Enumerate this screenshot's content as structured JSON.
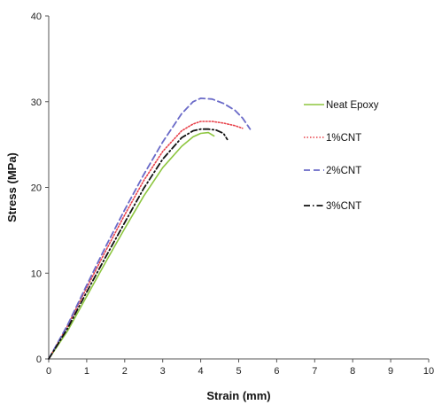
{
  "chart_data": {
    "type": "line",
    "title": "",
    "xlabel": "Strain (mm)",
    "ylabel": "Stress (MPa)",
    "xlim": [
      0,
      10
    ],
    "ylim": [
      0,
      40
    ],
    "xticks": [
      "0",
      "1",
      "2",
      "3",
      "4",
      "5",
      "6",
      "7",
      "8",
      "9",
      "10"
    ],
    "yticks": [
      "0",
      "10",
      "20",
      "30",
      "40"
    ],
    "grid": false,
    "legend_position": "right",
    "series": [
      {
        "name": "Neat Epoxy",
        "color": "#8dc63f",
        "dash": "solid",
        "x": [
          0,
          0.5,
          1.0,
          1.5,
          2.0,
          2.5,
          3.0,
          3.5,
          3.8,
          4.0,
          4.2,
          4.35
        ],
        "y": [
          0,
          3.3,
          7.3,
          11.3,
          15.2,
          19.0,
          22.3,
          24.8,
          25.9,
          26.3,
          26.4,
          26.0
        ]
      },
      {
        "name": "1%CNT",
        "color": "#e8414a",
        "dash": "dotted",
        "x": [
          0,
          0.5,
          1.0,
          1.5,
          2.0,
          2.5,
          3.0,
          3.5,
          3.8,
          4.0,
          4.3,
          4.6,
          4.9,
          5.1
        ],
        "y": [
          0,
          3.9,
          8.3,
          12.6,
          16.8,
          20.8,
          24.2,
          26.6,
          27.4,
          27.7,
          27.7,
          27.5,
          27.2,
          26.9
        ]
      },
      {
        "name": "2%CNT",
        "color": "#6a6ac8",
        "dash": "dashed",
        "x": [
          0,
          0.5,
          1.0,
          1.5,
          2.0,
          2.5,
          3.0,
          3.5,
          3.8,
          4.0,
          4.3,
          4.6,
          4.9,
          5.1,
          5.3
        ],
        "y": [
          0,
          4.0,
          8.6,
          13.1,
          17.4,
          21.5,
          25.3,
          28.6,
          30.0,
          30.4,
          30.3,
          29.8,
          29.0,
          28.1,
          26.8
        ]
      },
      {
        "name": "3%CNT",
        "color": "#111111",
        "dash": "dashdot",
        "x": [
          0,
          0.5,
          1.0,
          1.5,
          2.0,
          2.5,
          3.0,
          3.5,
          3.8,
          4.0,
          4.2,
          4.4,
          4.6,
          4.7
        ],
        "y": [
          0,
          3.6,
          7.8,
          11.9,
          15.9,
          19.9,
          23.3,
          25.8,
          26.6,
          26.8,
          26.8,
          26.7,
          26.3,
          25.6
        ]
      }
    ]
  }
}
